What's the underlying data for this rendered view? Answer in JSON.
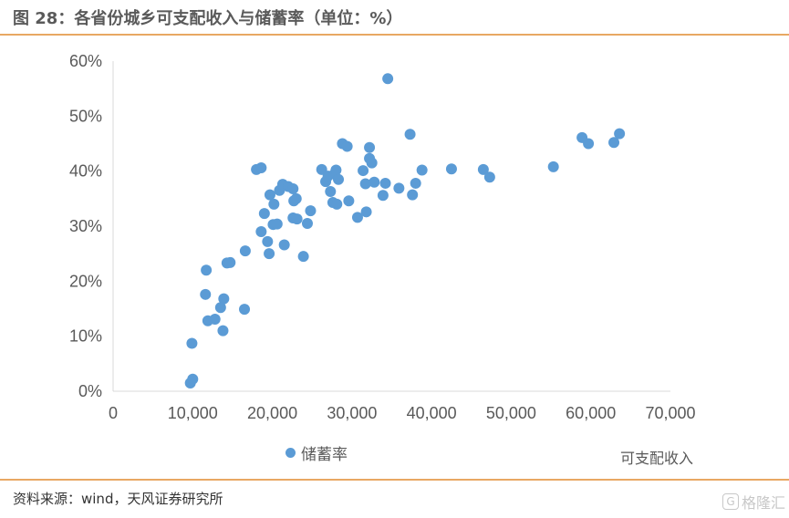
{
  "header": {
    "title": "图 28：各省份城乡可支配收入与储蓄率（单位：%）"
  },
  "footer": {
    "source": "资料来源：wind，天风证券研究所"
  },
  "watermark": {
    "icon": "G",
    "text": "格隆汇"
  },
  "colors": {
    "point": "#5b9bd5",
    "accent": "#e8a863",
    "axis": "#d9d9d9",
    "text": "#595959"
  },
  "chart_data": {
    "type": "scatter",
    "xlabel": "可支配收入",
    "ylabel": "",
    "xlim": [
      0,
      70000
    ],
    "ylim": [
      0,
      0.6
    ],
    "x_ticks": [
      0,
      10000,
      20000,
      30000,
      40000,
      50000,
      60000,
      70000
    ],
    "x_tick_labels": [
      "0",
      "10,000",
      "20,000",
      "30,000",
      "40,000",
      "50,000",
      "60,000",
      "70,000"
    ],
    "y_ticks": [
      0,
      0.1,
      0.2,
      0.3,
      0.4,
      0.5,
      0.6
    ],
    "y_tick_labels": [
      "0%",
      "10%",
      "20%",
      "30%",
      "40%",
      "50%",
      "60%"
    ],
    "grid": false,
    "legend": "bottom-left",
    "series": [
      {
        "name": "储蓄率",
        "points": [
          [
            9700,
            0.015
          ],
          [
            10000,
            0.022
          ],
          [
            9900,
            0.087
          ],
          [
            11700,
            0.22
          ],
          [
            11600,
            0.176
          ],
          [
            11900,
            0.128
          ],
          [
            12800,
            0.131
          ],
          [
            13500,
            0.152
          ],
          [
            13800,
            0.11
          ],
          [
            13900,
            0.168
          ],
          [
            14300,
            0.233
          ],
          [
            14700,
            0.234
          ],
          [
            16600,
            0.255
          ],
          [
            16500,
            0.149
          ],
          [
            18000,
            0.403
          ],
          [
            18600,
            0.406
          ],
          [
            19000,
            0.323
          ],
          [
            19400,
            0.272
          ],
          [
            18600,
            0.29
          ],
          [
            19600,
            0.25
          ],
          [
            19700,
            0.357
          ],
          [
            20200,
            0.34
          ],
          [
            20100,
            0.303
          ],
          [
            20600,
            0.304
          ],
          [
            20900,
            0.365
          ],
          [
            21300,
            0.376
          ],
          [
            21500,
            0.266
          ],
          [
            22000,
            0.372
          ],
          [
            22600,
            0.368
          ],
          [
            22700,
            0.346
          ],
          [
            22600,
            0.315
          ],
          [
            23000,
            0.35
          ],
          [
            23100,
            0.313
          ],
          [
            23900,
            0.245
          ],
          [
            24400,
            0.305
          ],
          [
            24800,
            0.328
          ],
          [
            26200,
            0.403
          ],
          [
            26700,
            0.381
          ],
          [
            27000,
            0.391
          ],
          [
            27300,
            0.363
          ],
          [
            27600,
            0.343
          ],
          [
            27800,
            0.395
          ],
          [
            28000,
            0.402
          ],
          [
            28100,
            0.34
          ],
          [
            28300,
            0.385
          ],
          [
            28800,
            0.45
          ],
          [
            29400,
            0.445
          ],
          [
            29600,
            0.346
          ],
          [
            30700,
            0.316
          ],
          [
            31400,
            0.401
          ],
          [
            31700,
            0.377
          ],
          [
            31800,
            0.326
          ],
          [
            32200,
            0.443
          ],
          [
            32200,
            0.423
          ],
          [
            32500,
            0.415
          ],
          [
            32800,
            0.38
          ],
          [
            33900,
            0.356
          ],
          [
            34200,
            0.378
          ],
          [
            34500,
            0.568
          ],
          [
            35900,
            0.369
          ],
          [
            37300,
            0.467
          ],
          [
            37600,
            0.357
          ],
          [
            38000,
            0.378
          ],
          [
            38800,
            0.402
          ],
          [
            42500,
            0.404
          ],
          [
            46500,
            0.403
          ],
          [
            47300,
            0.389
          ],
          [
            55300,
            0.408
          ],
          [
            58900,
            0.461
          ],
          [
            59700,
            0.45
          ],
          [
            62900,
            0.452
          ],
          [
            63600,
            0.468
          ]
        ]
      }
    ]
  }
}
